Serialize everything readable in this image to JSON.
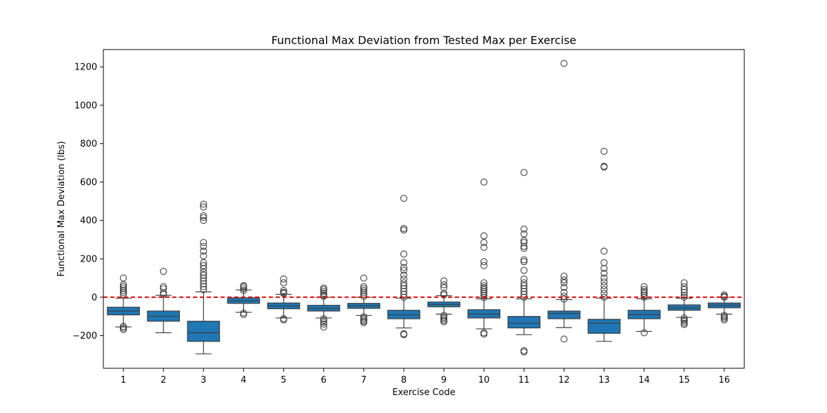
{
  "chart_data": {
    "type": "box",
    "title": "Functional Max Deviation from Tested Max per Exercise",
    "xlabel": "Exercise Code",
    "ylabel": "Functional Max Deviation (lbs)",
    "categories": [
      "1",
      "2",
      "3",
      "4",
      "5",
      "6",
      "7",
      "8",
      "9",
      "10",
      "11",
      "12",
      "13",
      "14",
      "15",
      "16"
    ],
    "ylim": [
      -370,
      1290
    ],
    "yticks": [
      -200,
      0,
      200,
      400,
      600,
      800,
      1000,
      1200
    ],
    "box_color": "#1f77b4",
    "reference_line": {
      "y": 0,
      "color": "#e00000",
      "style": "dashed"
    },
    "grid": false,
    "boxes": [
      {
        "whislo": -155,
        "q1": -92,
        "med": -72,
        "q3": -52,
        "whishi": -5,
        "fliers": [
          -168,
          -160,
          -152,
          15,
          25,
          35,
          45,
          55,
          65,
          100
        ]
      },
      {
        "whislo": -185,
        "q1": -125,
        "med": -100,
        "q3": -72,
        "whishi": 10,
        "fliers": [
          15,
          22,
          45,
          55,
          135
        ]
      },
      {
        "whislo": -295,
        "q1": -230,
        "med": -185,
        "q3": -125,
        "whishi": 28,
        "fliers": [
          40,
          55,
          70,
          85,
          100,
          115,
          130,
          150,
          165,
          180,
          215,
          240,
          265,
          285,
          400,
          415,
          425,
          470,
          485
        ]
      },
      {
        "whislo": -78,
        "q1": -32,
        "med": -18,
        "q3": -3,
        "whishi": 38,
        "fliers": [
          -90,
          -82,
          35,
          45,
          55,
          60
        ]
      },
      {
        "whislo": -108,
        "q1": -60,
        "med": -45,
        "q3": -30,
        "whishi": 15,
        "fliers": [
          -118,
          -112,
          20,
          25,
          35,
          75,
          95
        ]
      },
      {
        "whislo": -108,
        "q1": -72,
        "med": -58,
        "q3": -42,
        "whishi": 0,
        "fliers": [
          -155,
          -140,
          -130,
          -120,
          -112,
          5,
          10,
          20,
          30,
          40,
          48
        ]
      },
      {
        "whislo": -95,
        "q1": -58,
        "med": -45,
        "q3": -32,
        "whishi": 0,
        "fliers": [
          -132,
          -125,
          -118,
          -110,
          -102,
          5,
          15,
          25,
          35,
          45,
          55,
          100
        ]
      },
      {
        "whislo": -160,
        "q1": -112,
        "med": -92,
        "q3": -68,
        "whishi": -5,
        "fliers": [
          -195,
          -190,
          0,
          15,
          30,
          45,
          60,
          75,
          95,
          115,
          140,
          155,
          180,
          225,
          350,
          358,
          515
        ]
      },
      {
        "whislo": -88,
        "q1": -50,
        "med": -38,
        "q3": -25,
        "whishi": 8,
        "fliers": [
          -128,
          -120,
          -112,
          -105,
          -95,
          12,
          20,
          50,
          65,
          85
        ]
      },
      {
        "whislo": -165,
        "q1": -108,
        "med": -88,
        "q3": -65,
        "whishi": -8,
        "fliers": [
          -192,
          -185,
          -2,
          10,
          20,
          30,
          40,
          50,
          60,
          75,
          165,
          185,
          260,
          285,
          320,
          600
        ]
      },
      {
        "whislo": -195,
        "q1": -160,
        "med": -135,
        "q3": -100,
        "whishi": -8,
        "fliers": [
          -285,
          -278,
          0,
          15,
          30,
          45,
          60,
          75,
          95,
          140,
          185,
          195,
          255,
          265,
          285,
          295,
          330,
          355,
          650
        ]
      },
      {
        "whislo": -158,
        "q1": -112,
        "med": -85,
        "q3": -72,
        "whishi": -12,
        "fliers": [
          -218,
          -10,
          5,
          25,
          50,
          75,
          90,
          110,
          1218
        ]
      },
      {
        "whislo": -230,
        "q1": -188,
        "med": -135,
        "q3": -115,
        "whishi": -5,
        "fliers": [
          0,
          20,
          40,
          60,
          80,
          100,
          125,
          150,
          180,
          240,
          678,
          682,
          760
        ]
      },
      {
        "whislo": -178,
        "q1": -112,
        "med": -90,
        "q3": -68,
        "whishi": -8,
        "fliers": [
          -185,
          0,
          10,
          20,
          30,
          40,
          55
        ]
      },
      {
        "whislo": -105,
        "q1": -68,
        "med": -55,
        "q3": -40,
        "whishi": -5,
        "fliers": [
          -142,
          -135,
          -125,
          -118,
          -108,
          0,
          10,
          25,
          40,
          55,
          75
        ]
      },
      {
        "whislo": -88,
        "q1": -55,
        "med": -42,
        "q3": -30,
        "whishi": 0,
        "fliers": [
          -118,
          -110,
          -102,
          -95,
          0,
          5,
          12
        ]
      }
    ]
  }
}
